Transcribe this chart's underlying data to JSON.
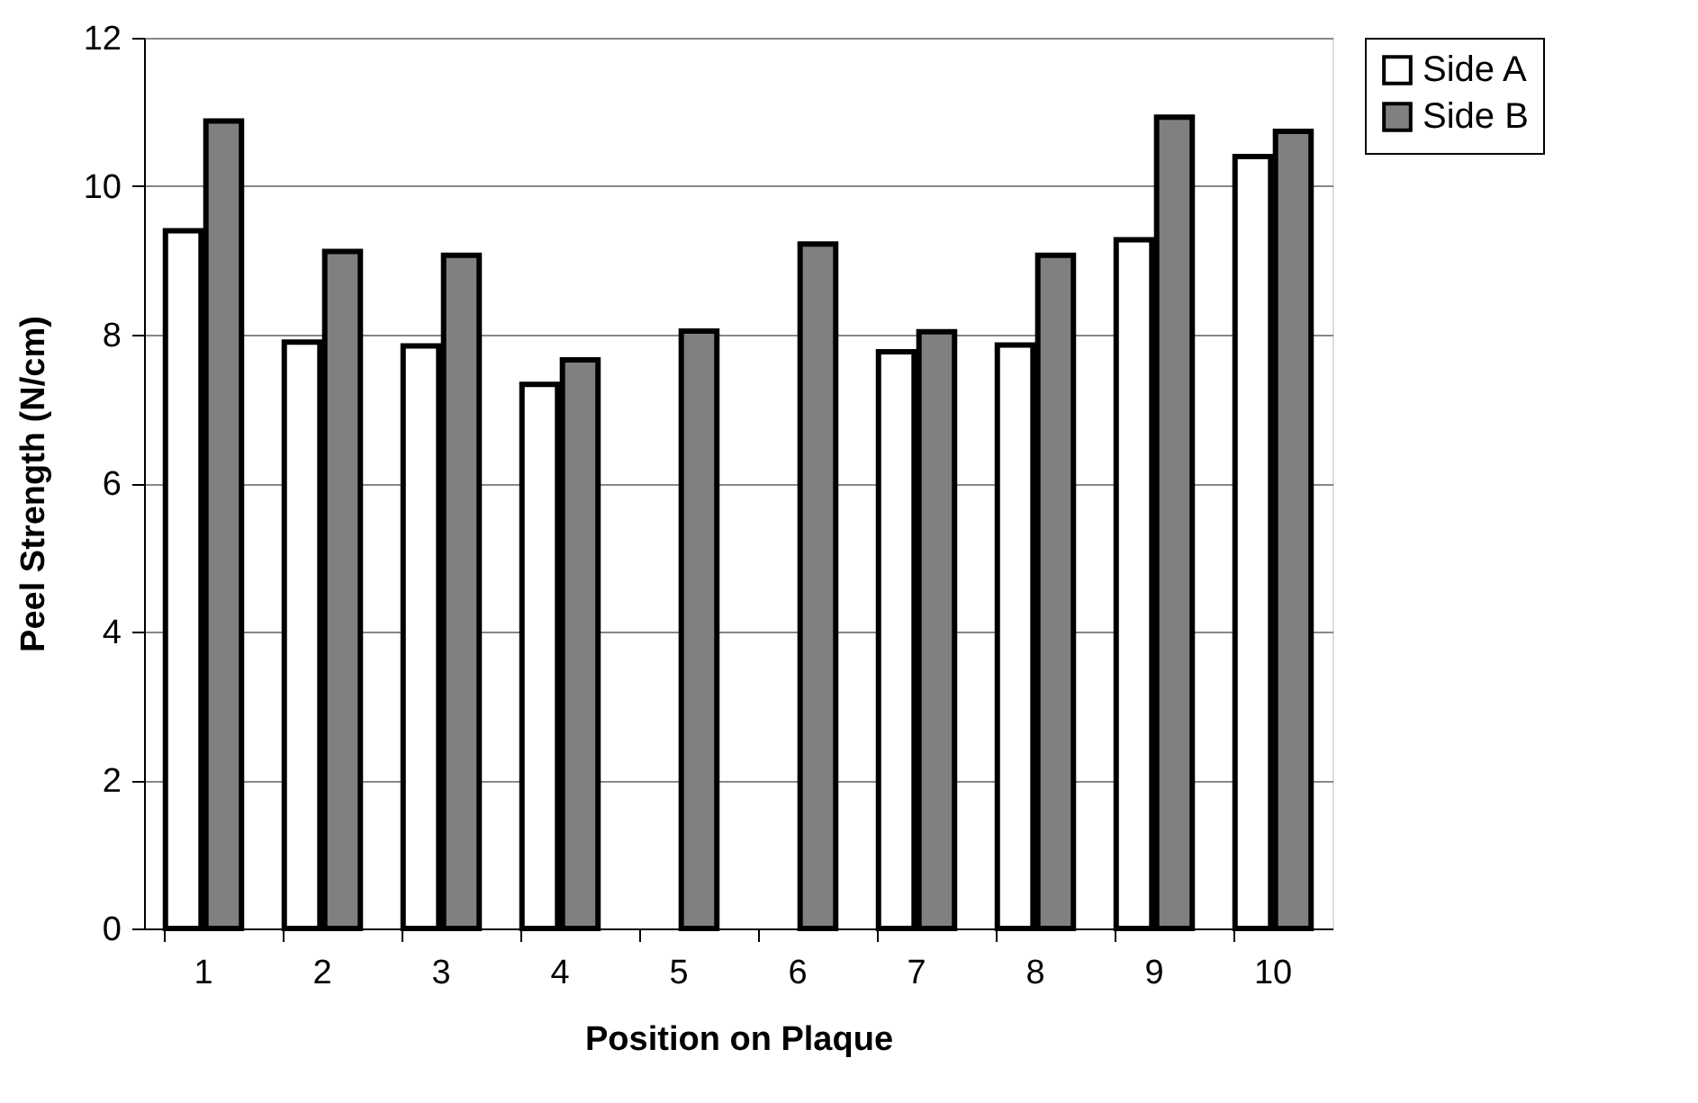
{
  "chart_data": {
    "type": "bar",
    "xlabel": "Position on Plaque",
    "ylabel": "Peel Strength (N/cm)",
    "categories": [
      "1",
      "2",
      "3",
      "4",
      "5",
      "6",
      "7",
      "8",
      "9",
      "10"
    ],
    "series": [
      {
        "name": "Side A",
        "color": "#ffffff",
        "values": [
          9.4,
          7.9,
          7.85,
          7.33,
          null,
          null,
          7.77,
          7.86,
          9.28,
          10.4
        ]
      },
      {
        "name": "Side B",
        "color": "#808080",
        "values": [
          10.88,
          9.12,
          9.07,
          7.66,
          8.05,
          9.22,
          8.04,
          9.07,
          10.93,
          10.74
        ]
      }
    ],
    "ylim": [
      0,
      12
    ],
    "yticks": [
      0,
      2,
      4,
      6,
      8,
      10,
      12
    ],
    "grid": "y",
    "legend": "right"
  }
}
